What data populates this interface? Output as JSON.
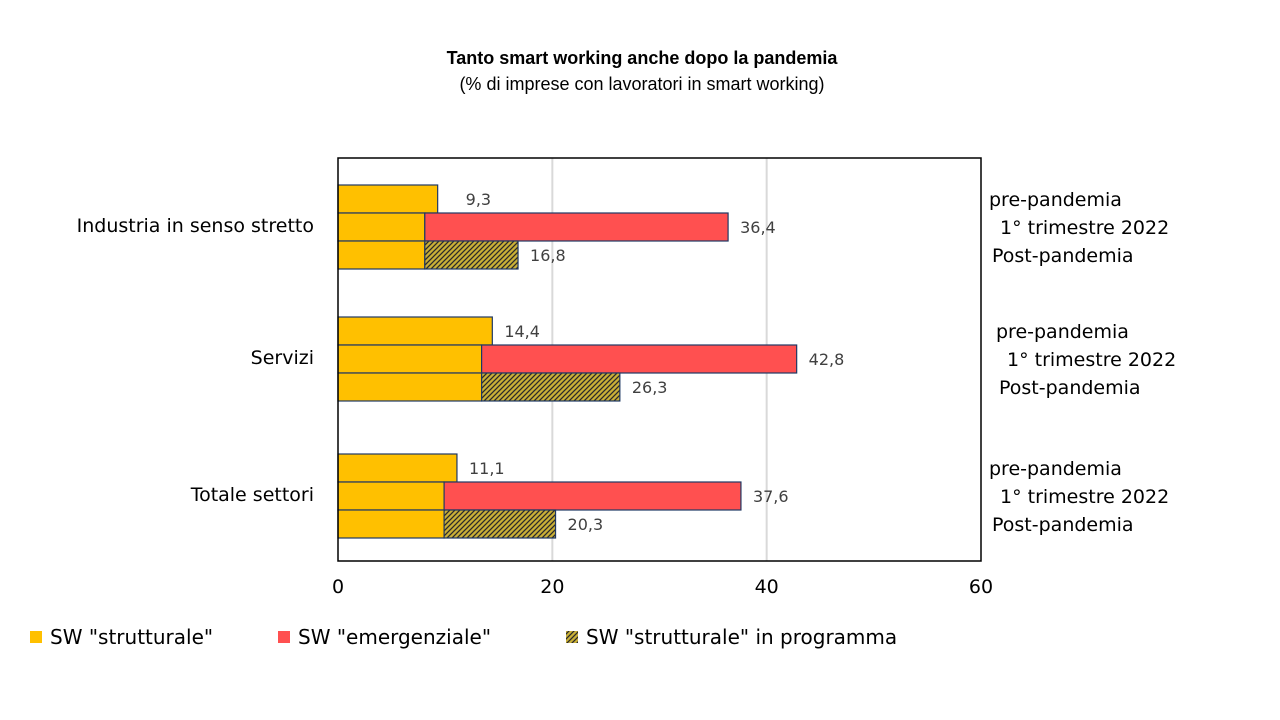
{
  "chart_data": {
    "type": "bar",
    "orientation": "horizontal",
    "title": "Tanto smart working anche dopo la pandemia",
    "subtitle": "(% di imprese con  lavoratori in smart working)",
    "xlim": [
      0,
      60
    ],
    "x_ticks": [
      0,
      20,
      40,
      60
    ],
    "x_tick_labels": [
      "0",
      "20",
      "40",
      "60"
    ],
    "grid": "vertical",
    "legend_position": "bottom",
    "colors": {
      "strutturale": "#FFC000",
      "emergenziale": "#FF5050",
      "programma": "#C9B037",
      "outline": "#1F3864"
    },
    "legend": [
      {
        "key": "strutturale",
        "label": "SW \"strutturale\""
      },
      {
        "key": "emergenziale",
        "label": "SW \"emergenziale\""
      },
      {
        "key": "programma",
        "label": "SW \"strutturale\" in programma"
      }
    ],
    "groups": [
      {
        "category": "Industria in senso stretto",
        "bars": [
          {
            "label": "pre-pandemia",
            "segments": {
              "strutturale": 9.3
            },
            "total": 9.3,
            "total_label": "9,3"
          },
          {
            "label": "1° trimestre 2022",
            "segments": {
              "strutturale": 8.1,
              "emergenziale": 28.3
            },
            "total": 36.4,
            "total_label": "36,4"
          },
          {
            "label": "Post-pandemia",
            "segments": {
              "strutturale": 8.1,
              "programma": 8.7
            },
            "total": 16.8,
            "total_label": "16,8"
          }
        ]
      },
      {
        "category": "Servizi",
        "bars": [
          {
            "label": "pre-pandemia",
            "segments": {
              "strutturale": 14.4
            },
            "total": 14.4,
            "total_label": "14,4"
          },
          {
            "label": "1° trimestre 2022",
            "segments": {
              "strutturale": 13.4,
              "emergenziale": 29.4
            },
            "total": 42.8,
            "total_label": "42,8"
          },
          {
            "label": "Post-pandemia",
            "segments": {
              "strutturale": 13.4,
              "programma": 12.9
            },
            "total": 26.3,
            "total_label": "26,3"
          }
        ]
      },
      {
        "category": "Totale settori",
        "bars": [
          {
            "label": "pre-pandemia",
            "segments": {
              "strutturale": 11.1
            },
            "total": 11.1,
            "total_label": "11,1"
          },
          {
            "label": "1° trimestre 2022",
            "segments": {
              "strutturale": 9.9,
              "emergenziale": 27.7
            },
            "total": 37.6,
            "total_label": "37,6"
          },
          {
            "label": "Post-pandemia",
            "segments": {
              "strutturale": 9.9,
              "programma": 10.4
            },
            "total": 20.3,
            "total_label": "20,3"
          }
        ]
      }
    ]
  }
}
